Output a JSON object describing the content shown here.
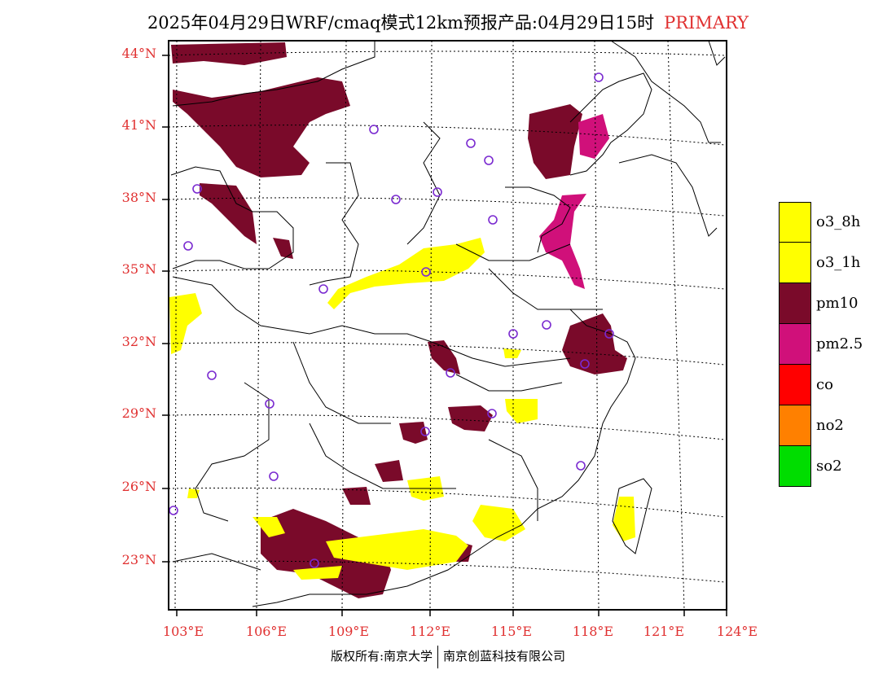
{
  "title": {
    "text": "2025年04月29日WRF/cmaq模式12km预报产品:04月29日15时",
    "tag": "PRIMARY",
    "tag_color": "#e03030"
  },
  "axes": {
    "lat_labels": [
      "44°N",
      "41°N",
      "38°N",
      "35°N",
      "32°N",
      "29°N",
      "26°N",
      "23°N"
    ],
    "lon_labels": [
      "103°E",
      "106°E",
      "109°E",
      "112°E",
      "115°E",
      "118°E",
      "121°E",
      "124°E"
    ],
    "label_color": "#e03030"
  },
  "legend": [
    {
      "label": "o3_8h",
      "color": "#ffff00"
    },
    {
      "label": "o3_1h",
      "color": "#ffff00"
    },
    {
      "label": "pm10",
      "color": "#7a0a2a"
    },
    {
      "label": "pm2.5",
      "color": "#d0107a"
    },
    {
      "label": "co",
      "color": "#ff0000"
    },
    {
      "label": "no2",
      "color": "#ff8000"
    },
    {
      "label": "so2",
      "color": "#00dd00"
    }
  ],
  "footer": {
    "left": "版权所有:南京大学",
    "right": "南京创蓝科技有限公司"
  }
}
